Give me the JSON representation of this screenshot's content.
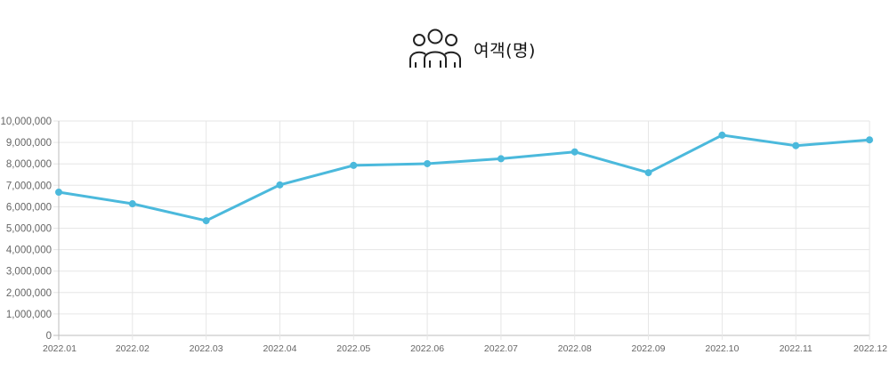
{
  "header": {
    "title": "여객(명)",
    "icon": "people-group-icon"
  },
  "chart_data": {
    "type": "line",
    "title": "여객(명)",
    "xlabel": "",
    "ylabel": "",
    "categories": [
      "2022.01",
      "2022.02",
      "2022.03",
      "2022.04",
      "2022.05",
      "2022.06",
      "2022.07",
      "2022.08",
      "2022.09",
      "2022.10",
      "2022.11",
      "2022.12"
    ],
    "series": [
      {
        "values": [
          6680000,
          6140000,
          5350000,
          7020000,
          7930000,
          8010000,
          8240000,
          8560000,
          7590000,
          9340000,
          8850000,
          9120000
        ],
        "color": "#4bb9dc"
      }
    ],
    "ylim": [
      0,
      10000000
    ],
    "yticks": [
      "0",
      "1,000,000",
      "2,000,000",
      "3,000,000",
      "4,000,000",
      "5,000,000",
      "6,000,000",
      "7,000,000",
      "8,000,000",
      "9,000,000",
      "10,000,000"
    ],
    "grid": true,
    "legend": "none"
  }
}
